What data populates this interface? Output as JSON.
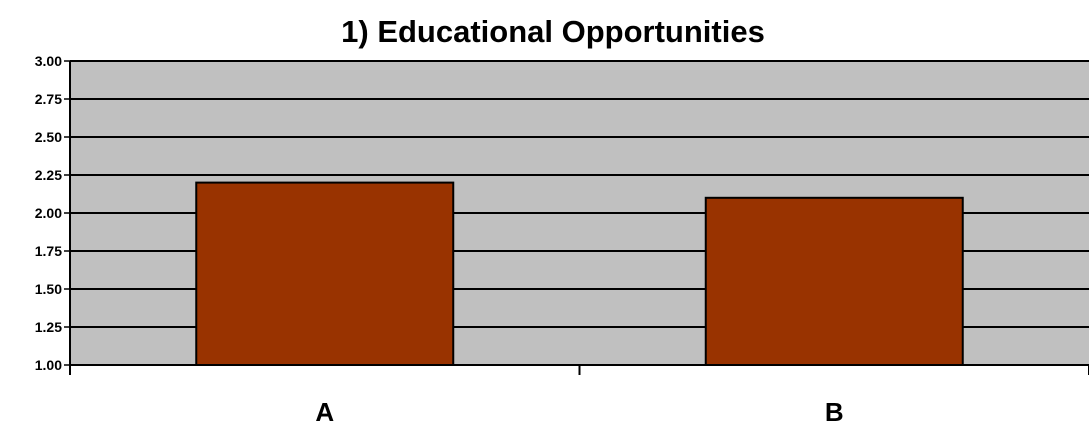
{
  "chart_data": {
    "type": "bar",
    "title": "1) Educational Opportunities",
    "xlabel": "",
    "ylabel": "",
    "categories": [
      "A",
      "B"
    ],
    "values": [
      2.2,
      2.1
    ],
    "ylim": [
      1.0,
      3.0
    ],
    "yticks": [
      "1.00",
      "1.25",
      "1.50",
      "1.75",
      "2.00",
      "2.25",
      "2.50",
      "2.75",
      "3.00"
    ],
    "grid": true,
    "legend": "none",
    "colors": {
      "plot_background": "#c0c0c0",
      "bar_fill": "#993300",
      "bar_stroke": "#000000",
      "gridline": "#000000"
    }
  }
}
